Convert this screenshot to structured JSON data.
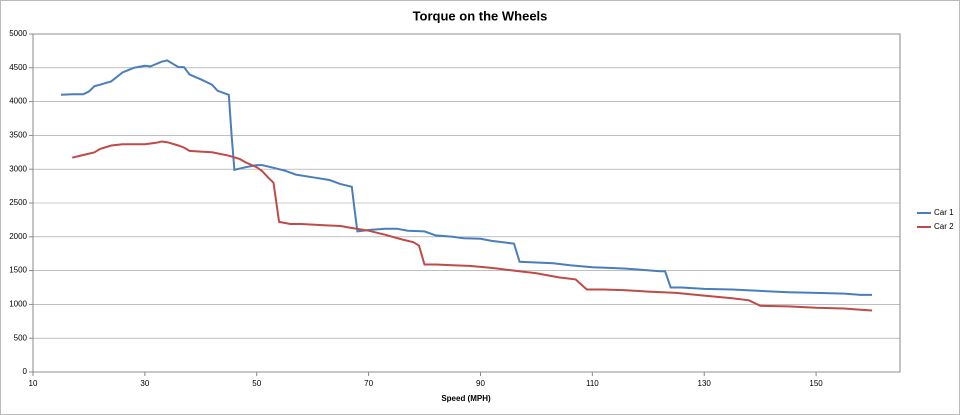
{
  "chart_data": {
    "type": "line",
    "title": "Torque on the Wheels",
    "x_label": "Speed (MPH)",
    "xlim": [
      10,
      165
    ],
    "xticks": [
      10,
      30,
      50,
      70,
      90,
      110,
      130,
      150
    ],
    "ylim": [
      0,
      5000
    ],
    "yticks": [
      0,
      500,
      1000,
      1500,
      2000,
      2500,
      3000,
      3500,
      4000,
      4500,
      5000
    ],
    "grid": true,
    "legend": "right",
    "series": [
      {
        "name": "Car 1",
        "color": "#4a7ebb",
        "x": [
          15,
          17,
          19,
          20,
          21,
          22,
          24,
          26,
          28,
          30,
          31,
          33,
          34,
          36,
          37,
          38,
          40,
          42,
          43,
          45,
          45.5,
          46,
          48,
          50,
          51,
          53,
          55,
          57,
          60,
          63,
          65,
          67,
          67.5,
          68,
          70,
          73,
          75,
          77,
          80,
          82,
          85,
          87,
          90,
          92,
          94,
          96,
          97,
          100,
          103,
          106,
          110,
          113,
          116,
          119,
          122,
          123,
          124,
          126,
          130,
          135,
          140,
          145,
          150,
          155,
          158,
          160
        ],
        "values": [
          4100,
          4110,
          4110,
          4150,
          4230,
          4250,
          4300,
          4430,
          4500,
          4530,
          4520,
          4590,
          4610,
          4510,
          4510,
          4400,
          4330,
          4250,
          4160,
          4100,
          3500,
          2990,
          3030,
          3060,
          3060,
          3020,
          2980,
          2920,
          2880,
          2840,
          2780,
          2740,
          2400,
          2080,
          2100,
          2120,
          2120,
          2090,
          2080,
          2020,
          2000,
          1980,
          1970,
          1940,
          1920,
          1900,
          1630,
          1620,
          1610,
          1580,
          1550,
          1540,
          1530,
          1510,
          1490,
          1490,
          1250,
          1250,
          1230,
          1220,
          1200,
          1180,
          1170,
          1160,
          1140,
          1140
        ]
      },
      {
        "name": "Car 2",
        "color": "#be4b48",
        "x": [
          17,
          19,
          21,
          22,
          24,
          26,
          30,
          32,
          33,
          34,
          36,
          37,
          38,
          40,
          42,
          45,
          47,
          48,
          50,
          51,
          52,
          53,
          54,
          56,
          58,
          62,
          65,
          67,
          70,
          73,
          76,
          78,
          79,
          80,
          82,
          85,
          88,
          92,
          96,
          100,
          104,
          107,
          109,
          112,
          116,
          120,
          125,
          130,
          135,
          138,
          140,
          145,
          150,
          155,
          158,
          160
        ],
        "values": [
          3170,
          3210,
          3250,
          3300,
          3350,
          3370,
          3370,
          3390,
          3410,
          3400,
          3350,
          3320,
          3270,
          3260,
          3250,
          3200,
          3150,
          3100,
          3030,
          2970,
          2880,
          2800,
          2220,
          2190,
          2190,
          2170,
          2160,
          2130,
          2090,
          2030,
          1960,
          1920,
          1870,
          1590,
          1590,
          1580,
          1570,
          1540,
          1500,
          1460,
          1400,
          1370,
          1220,
          1220,
          1210,
          1190,
          1170,
          1130,
          1090,
          1060,
          980,
          970,
          950,
          940,
          920,
          910
        ]
      }
    ]
  }
}
